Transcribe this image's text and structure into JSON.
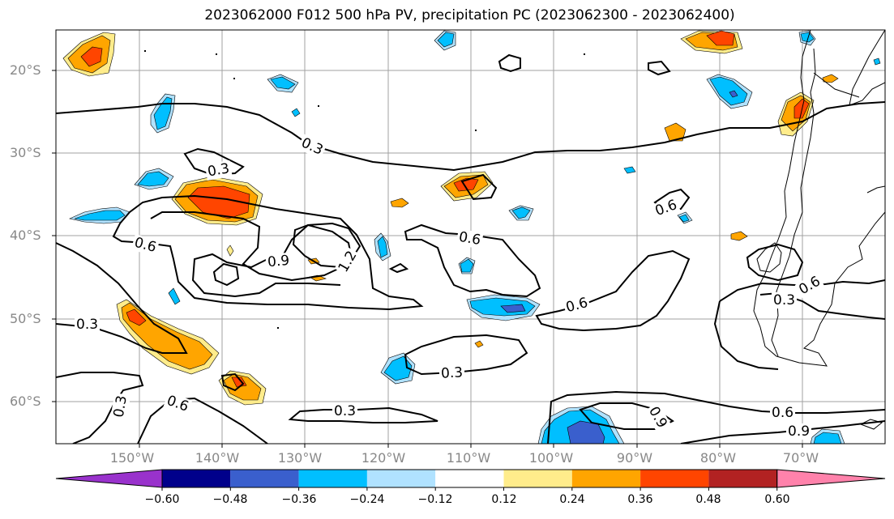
{
  "title": "2023062000 F012 500 hPa PV, precipitation PC (2023062300 - 2023062400)",
  "map": {
    "latitude_labels": [
      "20°S",
      "30°S",
      "40°S",
      "50°S",
      "60°S"
    ],
    "longitude_labels": [
      "150°W",
      "140°W",
      "130°W",
      "120°W",
      "110°W",
      "100°W",
      "90°W",
      "80°W",
      "70°W"
    ],
    "pv_contour_labels": [
      "0.3",
      "0.3",
      "0.6",
      "0.9",
      "1.2",
      "0.6",
      "0.6",
      "0.3",
      "0.6",
      "0.3",
      "0.3",
      "0.6",
      "0.3",
      "0.9",
      "0.6",
      "0.9",
      "0.6",
      "0.3"
    ],
    "axis_label_color": "#888888",
    "gridline_color": "#999999",
    "contour_color": "#000000"
  },
  "colorbar": {
    "ticks": [
      "−0.60",
      "−0.48",
      "−0.36",
      "−0.24",
      "−0.12",
      "0.12",
      "0.24",
      "0.36",
      "0.48",
      "0.60"
    ],
    "colors": [
      "#9932cc",
      "#00008b",
      "#3a5fcd",
      "#00bfff",
      "#b0e2ff",
      "#ffffff",
      "#ffec8b",
      "#ffa500",
      "#ff4500",
      "#b22222",
      "#ff82ab"
    ]
  }
}
